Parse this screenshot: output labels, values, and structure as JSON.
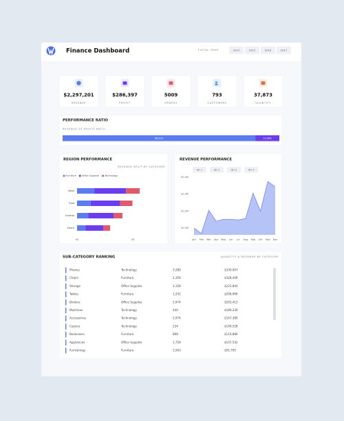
{
  "header": {
    "title": "Finance Dashboard",
    "fiscal_label": "FISCAL YEAR",
    "years": [
      "2014",
      "2015",
      "2016",
      "2017"
    ]
  },
  "kpis": [
    {
      "value": "$2,297,201",
      "label": "REVENUE"
    },
    {
      "value": "$286,397",
      "label": "PROFIT"
    },
    {
      "value": "5009",
      "label": "ORDERS"
    },
    {
      "value": "793",
      "label": "CUSTOMERS"
    },
    {
      "value": "37,873",
      "label": "QUANTITY"
    }
  ],
  "chart_data": [
    {
      "type": "ratio_bar",
      "title": "PERFORMANCE RATIO",
      "subtitle": "REVENUE VS PROFIT RATIO",
      "values": [
        88.91,
        11.09
      ],
      "value_labels": [
        "88.91%",
        "11.09%"
      ],
      "colors": [
        "#5b7cf0",
        "#6a3df0"
      ],
      "xlim": [
        0,
        100
      ]
    },
    {
      "type": "bar",
      "orientation": "horizontal",
      "stacked": true,
      "title": "REGION PERFORMANCE",
      "subtitle": "REVENUE SPLIT BY CATEGORY",
      "categories": [
        "West",
        "East",
        "Central",
        "South"
      ],
      "series": [
        {
          "name": "Furniture",
          "color": "#5b7cf0",
          "values": [
            0.62,
            0.49,
            0.4,
            0.3
          ]
        },
        {
          "name": "Office Supplies",
          "color": "#6a3df0",
          "values": [
            1.14,
            1.06,
            0.91,
            0.64
          ]
        },
        {
          "name": "Technology",
          "color": "#e05a6a",
          "values": [
            0.49,
            0.44,
            0.32,
            0.25
          ]
        }
      ],
      "xlim": [
        0,
        2.2
      ],
      "xticks": [
        {
          "value": 0,
          "label": "0K"
        },
        {
          "value": 2,
          "label": "2K"
        }
      ],
      "legend": "top"
    },
    {
      "type": "area",
      "title": "REVENUE PERFORMANCE",
      "quarters": [
        "Qtr 1",
        "Qtr 2",
        "Qtr 3",
        "Qtr 4"
      ],
      "categories": [
        "Jan",
        "Feb",
        "Mar",
        "Apr",
        "May",
        "Jun",
        "Jul",
        "Aug",
        "Sep",
        "Oct",
        "Nov",
        "Dec"
      ],
      "series": [
        {
          "color": "#6f88f0",
          "values": [
            0.1,
            0.068,
            0.205,
            0.14,
            0.152,
            0.152,
            0.148,
            0.157,
            0.306,
            0.2,
            0.375,
            0.343
          ]
        }
      ],
      "ylim": [
        0.06,
        0.42
      ],
      "yticks": [
        {
          "value": 0.1,
          "label": "$0.1M"
        },
        {
          "value": 0.2,
          "label": "$0.2M"
        },
        {
          "value": 0.3,
          "label": "$0.3M"
        },
        {
          "value": 0.4,
          "label": "$0.4M"
        }
      ]
    }
  ],
  "ranking": {
    "title": "SUB-CATEGORY RANKING",
    "subtitle": "QUANTITY & REVENUE BY CATEGORY",
    "rows": [
      [
        "Phones",
        "Technology",
        "3,289",
        "$330,007"
      ],
      [
        "Chairs",
        "Furniture",
        "2,356",
        "$328,449"
      ],
      [
        "Storage",
        "Office Supplies",
        "3,158",
        "$223,844"
      ],
      [
        "Tables",
        "Furniture",
        "1,241",
        "$206,966"
      ],
      [
        "Binders",
        "Office Supplies",
        "5,974",
        "$203,413"
      ],
      [
        "Machines",
        "Technology",
        "440",
        "$189,239"
      ],
      [
        "Accessories",
        "Technology",
        "2,976",
        "$167,380"
      ],
      [
        "Copiers",
        "Technology",
        "234",
        "$149,528"
      ],
      [
        "Bookcases",
        "Furniture",
        "868",
        "$114,880"
      ],
      [
        "Appliances",
        "Office Supplies",
        "1,729",
        "$107,532"
      ],
      [
        "Furnishings",
        "Furniture",
        "3,563",
        "$91,705"
      ]
    ]
  }
}
